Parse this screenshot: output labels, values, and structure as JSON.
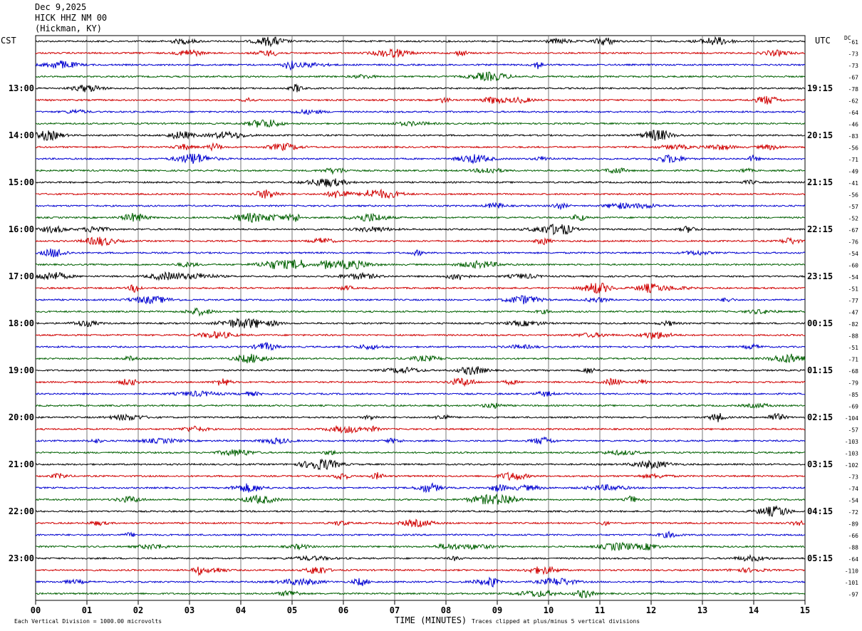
{
  "header": {
    "date": "Dec 9,2025",
    "station": "HICK HHZ NM 00",
    "location": "(Hickman, KY)"
  },
  "left_tz": "CST",
  "right_tz": "UTC",
  "dc_label": "DC",
  "bottom": {
    "scale_note": "Each Vertical Division = 1000.00 microvolts",
    "xlabel": "TIME (MINUTES)",
    "clip_note": "Traces clipped at plus/minus 5 vertical divisions"
  },
  "colors": {
    "cycle": [
      "#000000",
      "#d00000",
      "#0000d0",
      "#006000"
    ],
    "grid": "#000000"
  },
  "chart_data": {
    "type": "line",
    "x_ticks": [
      "00",
      "01",
      "02",
      "03",
      "04",
      "05",
      "06",
      "07",
      "08",
      "09",
      "10",
      "11",
      "12",
      "13",
      "14",
      "15"
    ],
    "x_range": [
      0,
      15
    ],
    "rows_per_hour": 4,
    "num_rows": 48,
    "left_hour_labels": [
      "13:00",
      "14:00",
      "15:00",
      "16:00",
      "17:00",
      "18:00",
      "19:00",
      "20:00",
      "21:00",
      "22:00",
      "23:00"
    ],
    "right_hour_labels": [
      "19:15",
      "20:15",
      "21:15",
      "22:15",
      "23:15",
      "00:15",
      "01:15",
      "02:15",
      "03:15",
      "04:15",
      "05:15"
    ],
    "dc_offsets": [
      -61,
      -73,
      -73,
      -67,
      -78,
      -62,
      -64,
      -46,
      -83,
      -56,
      -71,
      -49,
      -41,
      -56,
      -57,
      -52,
      -67,
      -76,
      -54,
      -60,
      -54,
      -51,
      -77,
      -47,
      -82,
      -88,
      -51,
      -71,
      -68,
      -79,
      -85,
      -69,
      -104,
      -57,
      -103,
      -103,
      -102,
      -73,
      -74,
      -54,
      -72,
      -89,
      -66,
      -88,
      -64,
      -110,
      -101,
      -97
    ]
  }
}
